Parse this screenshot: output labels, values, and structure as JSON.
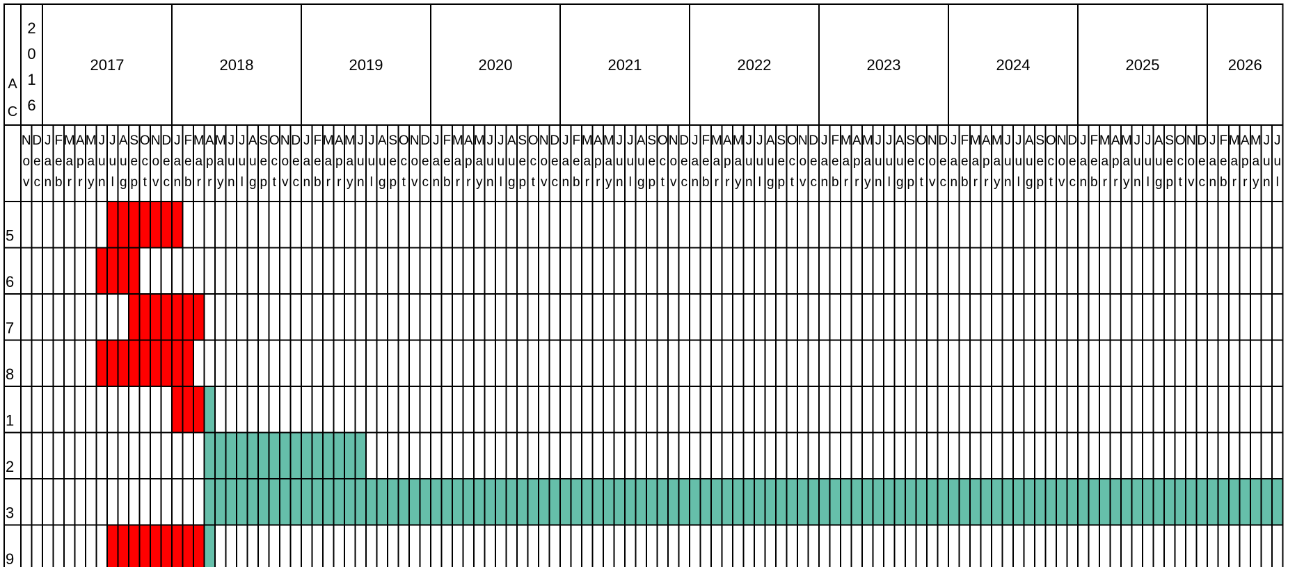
{
  "chart_data": {
    "type": "gantt",
    "title": "",
    "corner_year_label": "2016",
    "corner_cell_letters": [
      "A",
      "C"
    ],
    "start_month": "2016-11",
    "end_month": "2026-07",
    "years": [
      {
        "label": "2016",
        "first_month": "2016-11"
      },
      {
        "label": "2017",
        "first_month": "2017-01"
      },
      {
        "label": "2018",
        "first_month": "2018-01"
      },
      {
        "label": "2019",
        "first_month": "2019-01"
      },
      {
        "label": "2020",
        "first_month": "2020-01"
      },
      {
        "label": "2021",
        "first_month": "2021-01"
      },
      {
        "label": "2022",
        "first_month": "2022-01"
      },
      {
        "label": "2023",
        "first_month": "2023-01"
      },
      {
        "label": "2024",
        "first_month": "2024-01"
      },
      {
        "label": "2025",
        "first_month": "2025-01"
      },
      {
        "label": "2026",
        "first_month": "2026-01"
      }
    ],
    "month_abbreviations": [
      "Jan",
      "Feb",
      "Mar",
      "Apr",
      "May",
      "Jun",
      "Jul",
      "Aug",
      "Sep",
      "Oct",
      "Nov",
      "Dec"
    ],
    "rows": [
      {
        "label": "5",
        "segments": [
          {
            "start": "2017-07",
            "end": "2018-01",
            "color": "#ff0000"
          }
        ]
      },
      {
        "label": "6",
        "segments": [
          {
            "start": "2017-06",
            "end": "2017-09",
            "color": "#ff0000"
          }
        ]
      },
      {
        "label": "7",
        "segments": [
          {
            "start": "2017-09",
            "end": "2018-03",
            "color": "#ff0000"
          }
        ]
      },
      {
        "label": "8",
        "segments": [
          {
            "start": "2017-06",
            "end": "2018-02",
            "color": "#ff0000"
          }
        ]
      },
      {
        "label": "1",
        "segments": [
          {
            "start": "2018-01",
            "end": "2018-03",
            "color": "#ff0000"
          },
          {
            "start": "2018-04",
            "end": "2018-04",
            "color": "#66bfaa"
          }
        ]
      },
      {
        "label": "2",
        "segments": [
          {
            "start": "2018-04",
            "end": "2019-06",
            "color": "#66bfaa"
          }
        ]
      },
      {
        "label": "3",
        "segments": [
          {
            "start": "2018-04",
            "end": "2026-07",
            "color": "#66bfaa"
          }
        ]
      },
      {
        "label": "9",
        "segments": [
          {
            "start": "2017-07",
            "end": "2018-03",
            "color": "#ff0000"
          },
          {
            "start": "2018-04",
            "end": "2018-04",
            "color": "#66bfaa"
          }
        ]
      }
    ],
    "colors": {
      "red": "#ff0000",
      "teal": "#66bfaa",
      "grid": "#000000",
      "background": "#ffffff"
    },
    "grid": true,
    "legend": "none"
  }
}
